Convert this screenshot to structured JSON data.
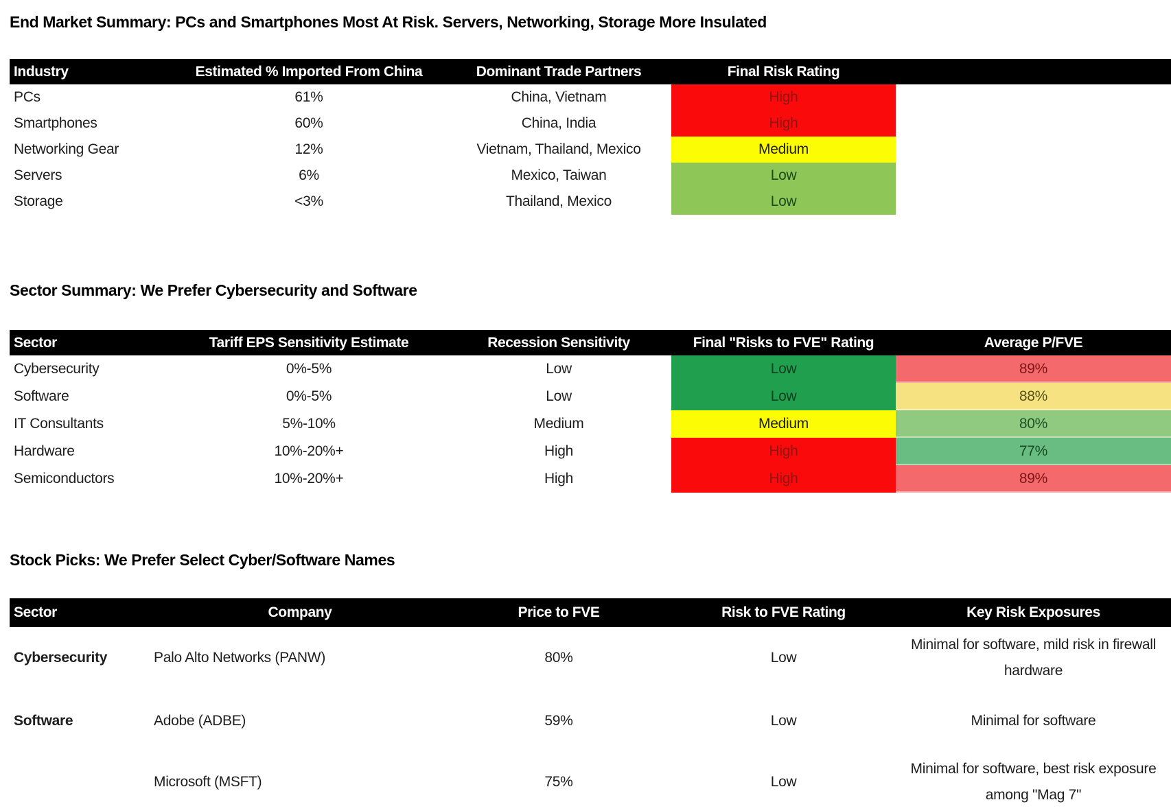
{
  "market_summary": {
    "title": "End Market Summary: PCs and Smartphones Most At Risk. Servers, Networking, Storage More Insulated",
    "headers": [
      "Industry",
      "Estimated % Imported From China",
      "Dominant Trade Partners",
      "Final Risk Rating"
    ],
    "rows": [
      {
        "industry": "PCs",
        "import_pct": "61%",
        "partners": "China, Vietnam",
        "rating": {
          "label": "High",
          "bg": "#fa0a0a",
          "fg": "#8c1515"
        }
      },
      {
        "industry": "Smartphones",
        "import_pct": "60%",
        "partners": "China, India",
        "rating": {
          "label": "High",
          "bg": "#fa0a0a",
          "fg": "#8c1515"
        }
      },
      {
        "industry": "Networking Gear",
        "import_pct": "12%",
        "partners": "Vietnam, Thailand, Mexico",
        "rating": {
          "label": "Medium",
          "bg": "#fcfc05",
          "fg": "#202005"
        }
      },
      {
        "industry": "Servers",
        "import_pct": "6%",
        "partners": "Mexico, Taiwan",
        "rating": {
          "label": "Low",
          "bg": "#8ec657",
          "fg": "#1d4b1d"
        }
      },
      {
        "industry": "Storage",
        "import_pct": "<3%",
        "partners": "Thailand, Mexico",
        "rating": {
          "label": "Low",
          "bg": "#8ec657",
          "fg": "#1d4b1d"
        }
      }
    ]
  },
  "sector_summary": {
    "title": "Sector Summary: We Prefer Cybersecurity and Software",
    "headers": [
      "Sector",
      "Tariff EPS Sensitivity Estimate",
      "Recession Sensitivity",
      "Final \"Risks to FVE\" Rating",
      "Average P/FVE"
    ],
    "rows": [
      {
        "sector": "Cybersecurity",
        "tariff_eps": "0%-5%",
        "recession": "Low",
        "rating": {
          "label": "Low",
          "bg": "#20a04e",
          "fg": "#0c3f20"
        },
        "pfve": {
          "label": "89%",
          "bg": "#f4696c",
          "fg": "#7c1518"
        }
      },
      {
        "sector": "Software",
        "tariff_eps": "0%-5%",
        "recession": "Low",
        "rating": {
          "label": "Low",
          "bg": "#20a04e",
          "fg": "#0c3f20"
        },
        "pfve": {
          "label": "88%",
          "bg": "#f7e282",
          "fg": "#55551b"
        }
      },
      {
        "sector": "IT Consultants",
        "tariff_eps": "5%-10%",
        "recession": "Medium",
        "rating": {
          "label": "Medium",
          "bg": "#fcfc05",
          "fg": "#202005"
        },
        "pfve": {
          "label": "80%",
          "bg": "#90c980",
          "fg": "#1d5226"
        }
      },
      {
        "sector": "Hardware",
        "tariff_eps": "10%-20%+",
        "recession": "High",
        "rating": {
          "label": "High",
          "bg": "#fa0a0a",
          "fg": "#8c1515"
        },
        "pfve": {
          "label": "77%",
          "bg": "#69bd82",
          "fg": "#164b24"
        }
      },
      {
        "sector": "Semiconductors",
        "tariff_eps": "10%-20%+",
        "recession": "High",
        "rating": {
          "label": "High",
          "bg": "#fa0a0a",
          "fg": "#8c1515"
        },
        "pfve": {
          "label": "89%",
          "bg": "#f4696c",
          "fg": "#7c1518"
        }
      }
    ]
  },
  "stock_picks": {
    "title": "Stock Picks: We Prefer Select Cyber/Software Names",
    "headers": [
      "Sector",
      "Company",
      "Price to FVE",
      "Risk to FVE Rating",
      "Key Risk Exposures"
    ],
    "rows": [
      {
        "sector": "Cybersecurity",
        "company": "Palo Alto Networks (PANW)",
        "price_to_fve": "80%",
        "risk_rating": "Low",
        "key_risks": "Minimal for software, mild risk in firewall hardware"
      },
      {
        "sector": "Software",
        "company": "Adobe (ADBE)",
        "price_to_fve": "59%",
        "risk_rating": "Low",
        "key_risks": "Minimal for software"
      },
      {
        "sector": "",
        "company": "Microsoft (MSFT)",
        "price_to_fve": "75%",
        "risk_rating": "Low",
        "key_risks": "Minimal for software, best risk exposure among \"Mag 7\""
      }
    ]
  }
}
